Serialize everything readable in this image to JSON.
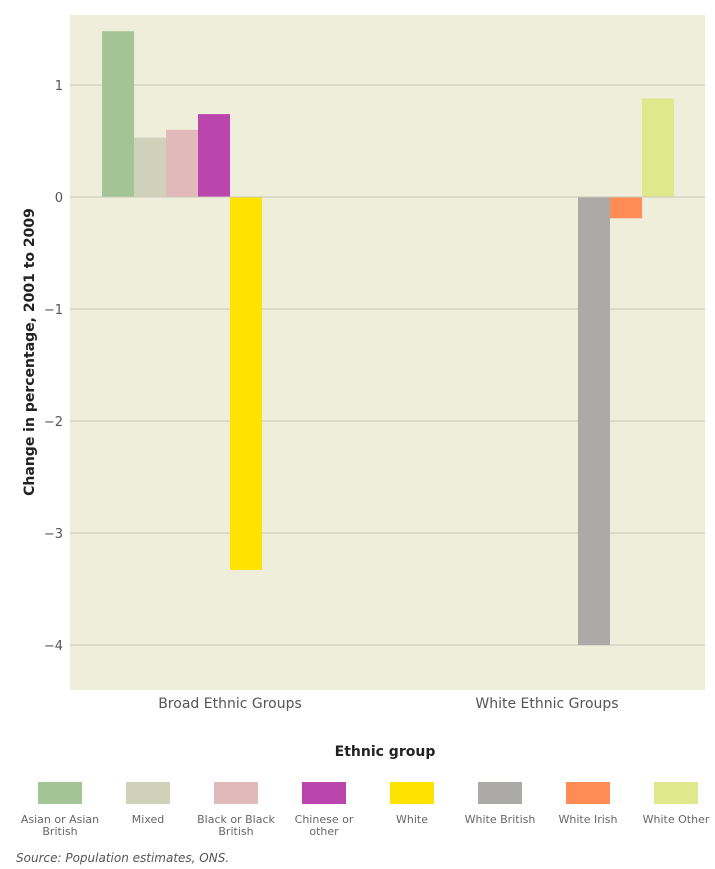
{
  "chart_data": {
    "type": "bar",
    "title": "",
    "xlabel": "Ethnic group",
    "ylabel": "Change in percentage, 2001 to 2009",
    "ylim": [
      -4.4,
      1.6
    ],
    "yticks": [
      1,
      0,
      -1,
      -2,
      -3,
      -4
    ],
    "ytick_labels": [
      "1",
      "0",
      "−1",
      "−2",
      "−3",
      "−4"
    ],
    "grid": true,
    "background": "#efeedb",
    "groups": [
      {
        "name": "Broad Ethnic Groups",
        "bars": [
          {
            "series": "Asian or Asian British",
            "value": 1.48,
            "color": "#a3c495"
          },
          {
            "series": "Mixed",
            "value": 0.53,
            "color": "#d0d1b9"
          },
          {
            "series": "Black or Black British",
            "value": 0.6,
            "color": "#e0b9b8"
          },
          {
            "series": "Chinese or other",
            "value": 0.74,
            "color": "#bb45ad"
          },
          {
            "series": "White",
            "value": -3.33,
            "color": "#ffe300"
          }
        ]
      },
      {
        "name": "White Ethnic Groups",
        "bars": [
          {
            "series": "White British",
            "value": -4.0,
            "color": "#abaaa6"
          },
          {
            "series": "White Irish",
            "value": -0.19,
            "color": "#ff8c55"
          },
          {
            "series": "White Other",
            "value": 0.88,
            "color": "#dfe98b"
          }
        ]
      }
    ],
    "legend": {
      "placement": "bottom",
      "entries": [
        {
          "name": "Asian or Asian British",
          "lines": [
            "Asian or Asian",
            "British"
          ],
          "color": "#a3c495"
        },
        {
          "name": "Mixed",
          "lines": [
            "Mixed"
          ],
          "color": "#d0d1b9"
        },
        {
          "name": "Black or Black British",
          "lines": [
            "Black or Black",
            "British"
          ],
          "color": "#e0b9b8"
        },
        {
          "name": "Chinese or other",
          "lines": [
            "Chinese or",
            "other"
          ],
          "color": "#bb45ad"
        },
        {
          "name": "White",
          "lines": [
            "White"
          ],
          "color": "#ffe300"
        },
        {
          "name": "White British",
          "lines": [
            "White British"
          ],
          "color": "#abaaa6"
        },
        {
          "name": "White Irish",
          "lines": [
            "White Irish"
          ],
          "color": "#ff8c55"
        },
        {
          "name": "White Other",
          "lines": [
            "White Other"
          ],
          "color": "#dfe98b"
        }
      ]
    }
  },
  "source": "Source: Population estimates, ONS."
}
